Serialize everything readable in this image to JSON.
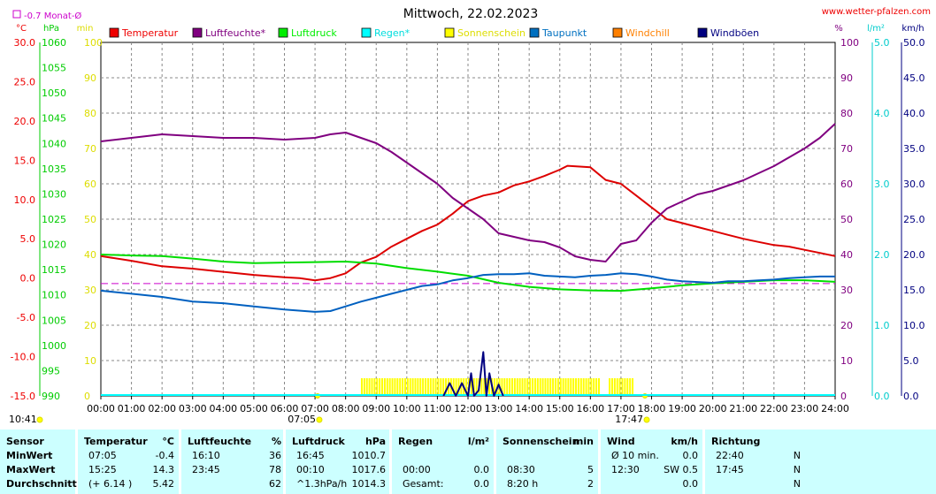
{
  "site": "www.wetter-pfalzen.com",
  "month_avg": "-0.7 Monat-Ø",
  "chart_data": {
    "type": "line",
    "title": "Mittwoch, 22.02.2023",
    "x_ticks": [
      "00:00",
      "01:00",
      "02:00",
      "03:00",
      "04:00",
      "05:00",
      "06:00",
      "07:00",
      "08:00",
      "09:00",
      "10:00",
      "11:00",
      "12:00",
      "13:00",
      "14:00",
      "15:00",
      "16:00",
      "17:00",
      "18:00",
      "19:00",
      "20:00",
      "21:00",
      "22:00",
      "23:00",
      "24:00"
    ],
    "sunrise": "07:05",
    "sunset": "17:47",
    "current_time": "10:41",
    "axes": {
      "temp": {
        "unit": "°C",
        "range": [
          -15,
          30
        ],
        "ticks": [
          "30.0",
          "25.0",
          "20.0",
          "15.0",
          "10.0",
          "5.0",
          "0.0",
          "-5.0",
          "-10.0",
          "-15.0"
        ]
      },
      "pressure": {
        "unit": "hPa",
        "range": [
          990,
          1060
        ],
        "ticks": [
          "1060",
          "1055",
          "1050",
          "1045",
          "1040",
          "1035",
          "1030",
          "1025",
          "1020",
          "1015",
          "1010",
          "1005",
          "1000",
          "995",
          "990"
        ]
      },
      "sun": {
        "unit": "min",
        "range": [
          0,
          100
        ],
        "ticks": [
          "100",
          "90",
          "80",
          "70",
          "60",
          "50",
          "40",
          "30",
          "20",
          "10",
          "0"
        ]
      },
      "humidity": {
        "unit": "%",
        "range": [
          0,
          100
        ],
        "ticks": [
          "100",
          "90",
          "80",
          "70",
          "60",
          "50",
          "40",
          "30",
          "20",
          "10",
          "0"
        ]
      },
      "rain": {
        "unit": "l/m²",
        "range": [
          0,
          5
        ],
        "ticks": [
          "5.0",
          "4.0",
          "3.0",
          "2.0",
          "1.0",
          "0.0"
        ]
      },
      "wind": {
        "unit": "km/h",
        "range": [
          0,
          50
        ],
        "ticks": [
          "50.0",
          "45.0",
          "40.0",
          "35.0",
          "30.0",
          "25.0",
          "20.0",
          "15.0",
          "10.0",
          "5.0",
          "0.0"
        ]
      }
    },
    "legend": [
      {
        "name": "Temperatur",
        "color": "#ee0000"
      },
      {
        "name": "Luftfeuchte*",
        "color": "#800080"
      },
      {
        "name": "Luftdruck",
        "color": "#00ee00"
      },
      {
        "name": "Regen*",
        "color": "#00ffff"
      },
      {
        "name": "Sonnenschein",
        "color": "#ffff00"
      },
      {
        "name": "Taupunkt",
        "color": "#0070c0"
      },
      {
        "name": "Windchill",
        "color": "#ff8000"
      },
      {
        "name": "Windböen",
        "color": "#000080"
      }
    ],
    "month_avg_temp": -0.7,
    "series": [
      {
        "name": "Temperatur",
        "axis": "temp",
        "color": "#dd0000",
        "x": [
          0,
          1,
          2,
          3,
          4,
          5,
          6,
          6.5,
          7,
          7.5,
          8,
          8.5,
          9,
          9.5,
          10,
          10.5,
          11,
          11.5,
          12,
          12.5,
          13,
          13.5,
          14,
          14.5,
          15,
          15.25,
          16,
          16.5,
          17,
          17.5,
          18,
          18.5,
          19,
          19.5,
          20,
          20.5,
          21,
          21.5,
          22,
          22.5,
          23,
          23.5,
          24
        ],
        "y": [
          2.8,
          2.2,
          1.5,
          1.2,
          0.8,
          0.4,
          0.1,
          0.0,
          -0.3,
          0.0,
          0.6,
          2.0,
          2.7,
          4.0,
          5.0,
          6.0,
          6.8,
          8.2,
          9.8,
          10.5,
          10.9,
          11.8,
          12.3,
          13.0,
          13.8,
          14.3,
          14.1,
          12.5,
          12.0,
          10.5,
          9.0,
          7.5,
          7.0,
          6.5,
          6.0,
          5.5,
          5.0,
          4.6,
          4.2,
          4.0,
          3.6,
          3.2,
          2.8
        ]
      },
      {
        "name": "Luftfeuchte*",
        "axis": "humidity",
        "color": "#800080",
        "x": [
          0,
          1,
          2,
          3,
          4,
          5,
          6,
          7,
          7.5,
          8,
          8.5,
          9,
          9.5,
          10,
          10.5,
          11,
          11.5,
          12,
          12.5,
          13,
          13.5,
          14,
          14.5,
          15,
          15.5,
          16,
          16.5,
          17,
          17.5,
          18,
          18.5,
          19,
          19.5,
          20,
          20.5,
          21,
          21.5,
          22,
          22.5,
          23,
          23.5,
          24
        ],
        "y": [
          72,
          73,
          74,
          73.5,
          73,
          73,
          72.5,
          73,
          74,
          74.5,
          73,
          71.5,
          69,
          66,
          63,
          60,
          56,
          53,
          50,
          46,
          45,
          44,
          43.5,
          42,
          39.5,
          38.5,
          38,
          43,
          44,
          49,
          53,
          55,
          57,
          58,
          59.5,
          61,
          63,
          65,
          67.5,
          70,
          73,
          77
        ]
      },
      {
        "name": "Luftdruck",
        "axis": "pressure",
        "color": "#00dd00",
        "x": [
          0,
          1,
          2,
          3,
          4,
          5,
          6,
          7,
          8,
          9,
          10,
          11,
          12,
          13,
          14,
          15,
          16,
          17,
          18,
          19,
          20,
          21,
          22,
          23,
          24
        ],
        "y": [
          1018,
          1017.8,
          1017.7,
          1017.2,
          1016.6,
          1016.3,
          1016.4,
          1016.5,
          1016.6,
          1016.2,
          1015.3,
          1014.6,
          1013.8,
          1012.4,
          1011.6,
          1011.1,
          1010.9,
          1010.8,
          1011.3,
          1011.9,
          1012.3,
          1012.6,
          1012.9,
          1012.9,
          1012.6
        ]
      },
      {
        "name": "Taupunkt",
        "axis": "temp",
        "color": "#0060c0",
        "x": [
          0,
          1,
          2,
          3,
          4,
          5,
          6,
          7,
          7.5,
          8,
          8.5,
          9,
          9.5,
          10,
          10.5,
          11,
          11.5,
          12,
          12.5,
          13,
          13.5,
          14,
          14.5,
          15,
          15.5,
          16,
          16.5,
          17,
          17.5,
          18,
          18.5,
          19,
          19.5,
          20,
          20.5,
          21,
          21.5,
          22,
          22.5,
          23,
          23.5,
          24
        ],
        "y": [
          -1.6,
          -2.0,
          -2.4,
          -3.0,
          -3.2,
          -3.6,
          -4.0,
          -4.3,
          -4.2,
          -3.6,
          -3.0,
          -2.5,
          -2.0,
          -1.5,
          -1.0,
          -0.8,
          -0.3,
          0.0,
          0.4,
          0.5,
          0.5,
          0.6,
          0.3,
          0.2,
          0.1,
          0.3,
          0.4,
          0.6,
          0.5,
          0.2,
          -0.2,
          -0.4,
          -0.5,
          -0.6,
          -0.4,
          -0.4,
          -0.3,
          -0.2,
          0.0,
          0.1,
          0.2,
          0.2
        ]
      },
      {
        "name": "Windböen",
        "axis": "wind",
        "color": "#000080",
        "x": [
          11.2,
          11.4,
          11.6,
          11.8,
          12.0,
          12.1,
          12.2,
          12.35,
          12.5,
          12.6,
          12.7,
          12.85,
          13.0,
          13.15
        ],
        "y": [
          0,
          1.8,
          0,
          1.8,
          0,
          3.2,
          0,
          0.8,
          6.2,
          0,
          3.2,
          0,
          1.6,
          0
        ]
      }
    ],
    "sunshine_blocks": [
      [
        8.5,
        16.3
      ],
      [
        16.6,
        17.4
      ]
    ],
    "monthly_avg_line": true
  },
  "table": {
    "cols": [
      {
        "header": [
          "Sensor",
          ""
        ],
        "rows": [
          [
            "MinWert",
            ""
          ],
          [
            "MaxWert",
            ""
          ],
          [
            "Durchschnitt",
            ""
          ]
        ]
      },
      {
        "header": [
          "Temperatur",
          "°C"
        ],
        "rows": [
          [
            "07:05",
            "-0.4"
          ],
          [
            "15:25",
            "14.3"
          ],
          [
            "(+ 6.14 )",
            "5.42"
          ]
        ]
      },
      {
        "header": [
          "Luftfeuchte",
          "%"
        ],
        "rows": [
          [
            "16:10",
            "36"
          ],
          [
            "23:45",
            "78"
          ],
          [
            "",
            "62"
          ]
        ]
      },
      {
        "header": [
          "Luftdruck",
          "hPa"
        ],
        "rows": [
          [
            "16:45",
            "1010.7"
          ],
          [
            "00:10",
            "1017.6"
          ],
          [
            "^1.3hPa/h",
            "1014.3"
          ]
        ]
      },
      {
        "header": [
          "Regen",
          "l/m²"
        ],
        "rows": [
          [
            "",
            ""
          ],
          [
            "00:00",
            "0.0"
          ],
          [
            "Gesamt:",
            "0.0"
          ]
        ]
      },
      {
        "header": [
          "Sonnenschein",
          "min"
        ],
        "rows": [
          [
            "",
            ""
          ],
          [
            "08:30",
            "5"
          ],
          [
            "8:20 h",
            "2"
          ]
        ]
      },
      {
        "header": [
          "Wind",
          "km/h"
        ],
        "rows": [
          [
            "Ø 10 min.",
            "0.0"
          ],
          [
            "12:30",
            "SW 0.5"
          ],
          [
            "",
            "0.0"
          ]
        ]
      },
      {
        "header": [
          "Richtung",
          ""
        ],
        "rows": [
          [
            "22:40",
            "N"
          ],
          [
            "17:45",
            "N"
          ],
          [
            "",
            "N"
          ]
        ]
      }
    ]
  }
}
